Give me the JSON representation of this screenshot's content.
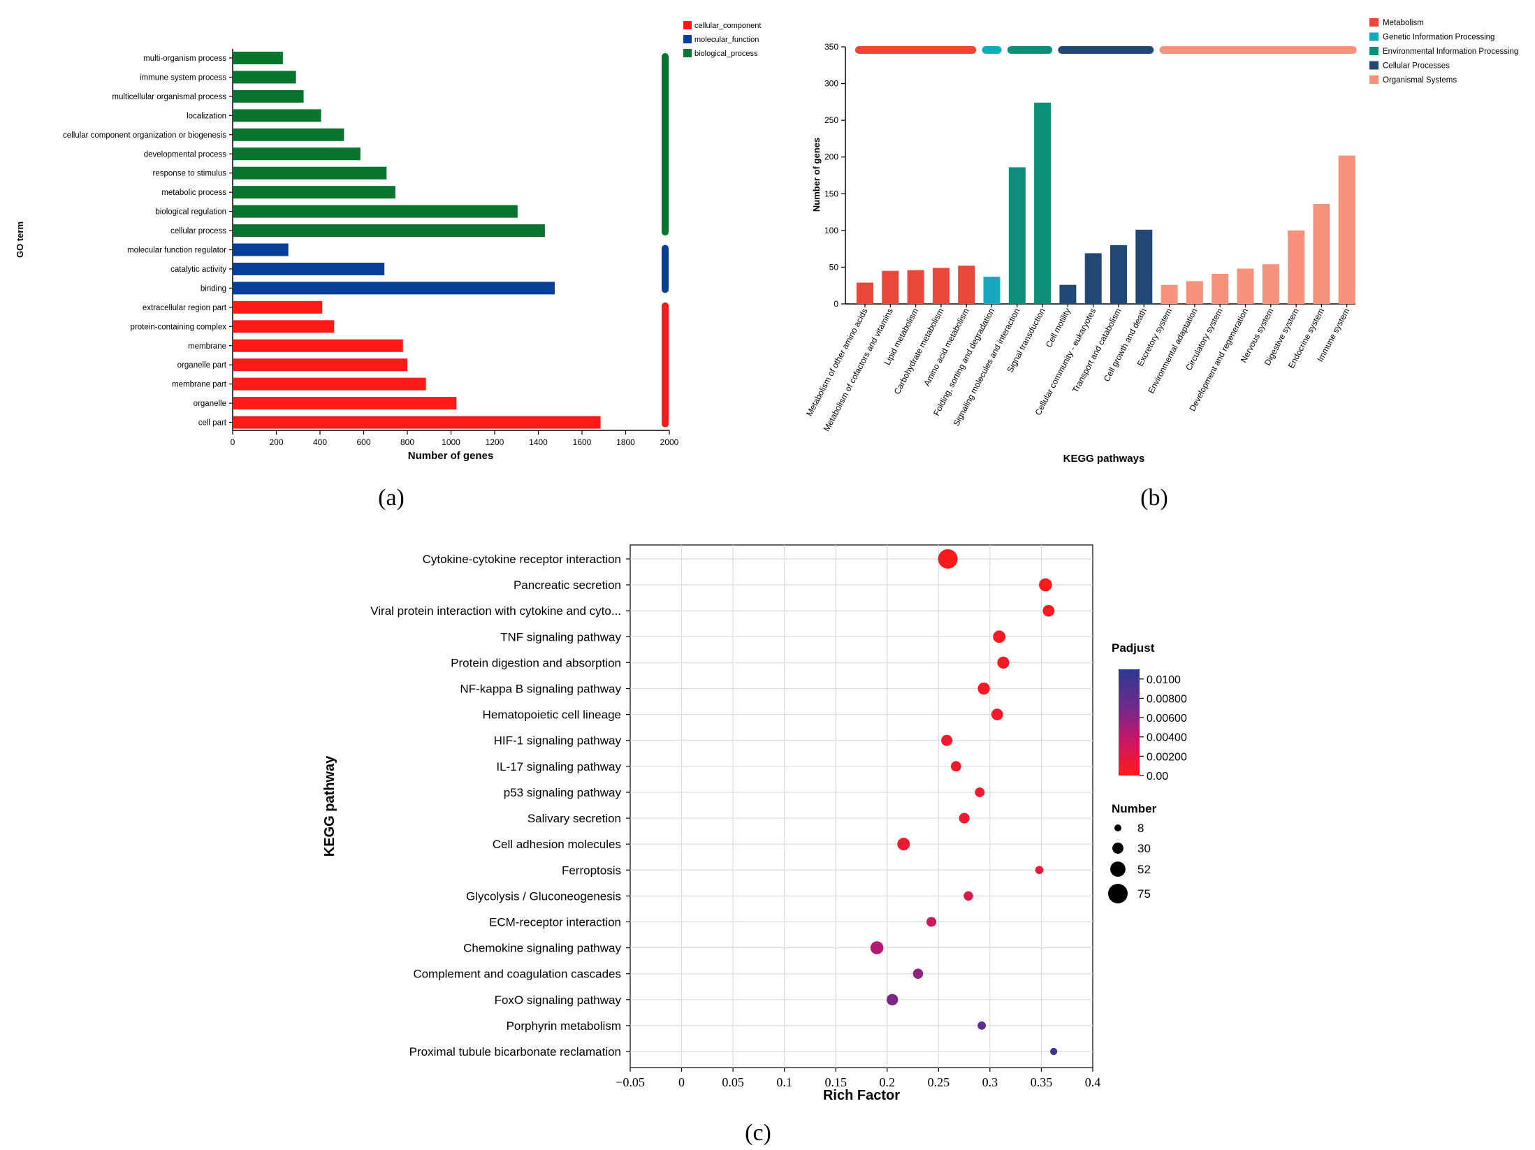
{
  "panel_labels": {
    "a": "(a)",
    "b": "(b)",
    "c": "(c)"
  },
  "chart_data": [
    {
      "id": "go",
      "type": "bar",
      "orientation": "horizontal",
      "xlabel": "Number of genes",
      "ylabel": "GO term",
      "xlim": [
        0,
        2000
      ],
      "xticks": [
        0,
        200,
        400,
        600,
        800,
        1000,
        1200,
        1400,
        1600,
        1800,
        2000
      ],
      "legend": [
        {
          "name": "cellular_component",
          "color": "#ff1a1a"
        },
        {
          "name": "molecular_function",
          "color": "#073e98"
        },
        {
          "name": "biological_process",
          "color": "#08742e"
        }
      ],
      "categories": [
        "multi-organism process",
        "immune system process",
        "multicellular organismal process",
        "localization",
        "cellular component organization or biogenesis",
        "developmental process",
        "response to stimulus",
        "metabolic process",
        "biological regulation",
        "cellular process",
        "molecular function regulator",
        "catalytic activity",
        "binding",
        "extracellular region part",
        "protein-containing complex",
        "membrane",
        "organelle part",
        "membrane part",
        "organelle",
        "cell part"
      ],
      "values": [
        230,
        290,
        325,
        405,
        510,
        585,
        705,
        745,
        1305,
        1430,
        255,
        695,
        1475,
        410,
        465,
        780,
        800,
        885,
        1025,
        1685
      ],
      "groups": [
        "biological_process",
        "biological_process",
        "biological_process",
        "biological_process",
        "biological_process",
        "biological_process",
        "biological_process",
        "biological_process",
        "biological_process",
        "biological_process",
        "molecular_function",
        "molecular_function",
        "molecular_function",
        "cellular_component",
        "cellular_component",
        "cellular_component",
        "cellular_component",
        "cellular_component",
        "cellular_component",
        "cellular_component"
      ]
    },
    {
      "id": "kegg_class",
      "type": "bar",
      "xlabel": "KEGG pathways",
      "ylabel": "Number of genes",
      "ylim": [
        0,
        350
      ],
      "yticks": [
        0,
        50,
        100,
        150,
        200,
        250,
        300,
        350
      ],
      "legend": [
        {
          "name": "Metabolism",
          "color": "#e8473a"
        },
        {
          "name": "Genetic Information Processing",
          "color": "#17a8bd"
        },
        {
          "name": "Environmental Information Processing",
          "color": "#0c8e78"
        },
        {
          "name": "Cellular Processes",
          "color": "#224875"
        },
        {
          "name": "Organismal Systems",
          "color": "#f6917c"
        }
      ],
      "categories": [
        "Metabolism of other amino acids",
        "Metabolism of cofactors and vitamins",
        "Lipid metabolism",
        "Carbohydrate metabolism",
        "Amino acid metabolism",
        "Folding, sorting and degradation",
        "Signaling molecules and interaction",
        "Signal transduction",
        "Cell motility",
        "Cellular community - eukaryotes",
        "Transport and catabolism",
        "Cell growth and death",
        "Excretory system",
        "Environmental adaptation",
        "Circulatory system",
        "Development and regeneration",
        "Nervous system",
        "Digestive system",
        "Endocrine system",
        "Immune system"
      ],
      "values": [
        29,
        45,
        46,
        49,
        52,
        37,
        186,
        274,
        26,
        69,
        80,
        101,
        26,
        31,
        41,
        48,
        54,
        100,
        136,
        202
      ],
      "groups": [
        "Metabolism",
        "Metabolism",
        "Metabolism",
        "Metabolism",
        "Metabolism",
        "Genetic Information Processing",
        "Environmental Information Processing",
        "Environmental Information Processing",
        "Cellular Processes",
        "Cellular Processes",
        "Cellular Processes",
        "Cellular Processes",
        "Organismal Systems",
        "Organismal Systems",
        "Organismal Systems",
        "Organismal Systems",
        "Organismal Systems",
        "Organismal Systems",
        "Organismal Systems",
        "Organismal Systems"
      ]
    },
    {
      "id": "kegg_enrich",
      "type": "scatter",
      "xlabel": "Rich Factor",
      "ylabel": "KEGG pathway",
      "xlim": [
        -0.05,
        0.4
      ],
      "xticks": [
        "−0.05",
        "0",
        "0.05",
        "0.1",
        "0.15",
        "0.2",
        "0.25",
        "0.3",
        "0.35",
        "0.4"
      ],
      "xtick_values": [
        -0.05,
        0,
        0.05,
        0.1,
        0.15,
        0.2,
        0.25,
        0.3,
        0.35,
        0.4
      ],
      "color_legend": {
        "title": "Padjust",
        "min": 0,
        "max": 0.011,
        "ticks": [
          "0.0100",
          "0.00800",
          "0.00600",
          "0.00400",
          "0.00200",
          "0.00"
        ],
        "tick_values": [
          0.01,
          0.008,
          0.006,
          0.004,
          0.002,
          0
        ]
      },
      "size_legend": {
        "title": "Number",
        "values": [
          8,
          30,
          52,
          75
        ],
        "labels": [
          "8",
          "30",
          "52",
          "75"
        ]
      },
      "points": [
        {
          "pathway": "Cytokine-cytokine receptor interaction",
          "rich": 0.259,
          "number": 75,
          "padj": 0.0001
        },
        {
          "pathway": "Pancreatic secretion",
          "rich": 0.354,
          "number": 40,
          "padj": 0.0002
        },
        {
          "pathway": "Viral protein interaction with cytokine and cyto...",
          "rich": 0.357,
          "number": 33,
          "padj": 0.0003
        },
        {
          "pathway": "TNF signaling pathway",
          "rich": 0.309,
          "number": 37,
          "padj": 0.0004
        },
        {
          "pathway": "Protein digestion and absorption",
          "rich": 0.313,
          "number": 35,
          "padj": 0.0005
        },
        {
          "pathway": "NF-kappa B signaling pathway",
          "rich": 0.294,
          "number": 35,
          "padj": 0.0006
        },
        {
          "pathway": "Hematopoietic cell lineage",
          "rich": 0.307,
          "number": 33,
          "padj": 0.0007
        },
        {
          "pathway": "HIF-1 signaling pathway",
          "rich": 0.258,
          "number": 30,
          "padj": 0.0008
        },
        {
          "pathway": "IL-17 signaling pathway",
          "rich": 0.267,
          "number": 26,
          "padj": 0.0009
        },
        {
          "pathway": "p53 signaling pathway",
          "rich": 0.29,
          "number": 22,
          "padj": 0.001
        },
        {
          "pathway": "Salivary secretion",
          "rich": 0.275,
          "number": 27,
          "padj": 0.0011
        },
        {
          "pathway": "Cell adhesion molecules",
          "rich": 0.216,
          "number": 38,
          "padj": 0.0012
        },
        {
          "pathway": "Ferroptosis",
          "rich": 0.348,
          "number": 14,
          "padj": 0.0015
        },
        {
          "pathway": "Glycolysis / Gluconeogenesis",
          "rich": 0.279,
          "number": 21,
          "padj": 0.0022
        },
        {
          "pathway": "ECM-receptor interaction",
          "rich": 0.243,
          "number": 23,
          "padj": 0.0032
        },
        {
          "pathway": "Chemokine signaling pathway",
          "rich": 0.19,
          "number": 40,
          "padj": 0.0045
        },
        {
          "pathway": "Complement and coagulation cascades",
          "rich": 0.23,
          "number": 25,
          "padj": 0.0058
        },
        {
          "pathway": "FoxO signaling pathway",
          "rich": 0.205,
          "number": 32,
          "padj": 0.0066
        },
        {
          "pathway": "Porphyrin metabolism",
          "rich": 0.292,
          "number": 15,
          "padj": 0.0082
        },
        {
          "pathway": "Proximal tubule bicarbonate reclamation",
          "rich": 0.362,
          "number": 9,
          "padj": 0.0102
        }
      ]
    }
  ]
}
